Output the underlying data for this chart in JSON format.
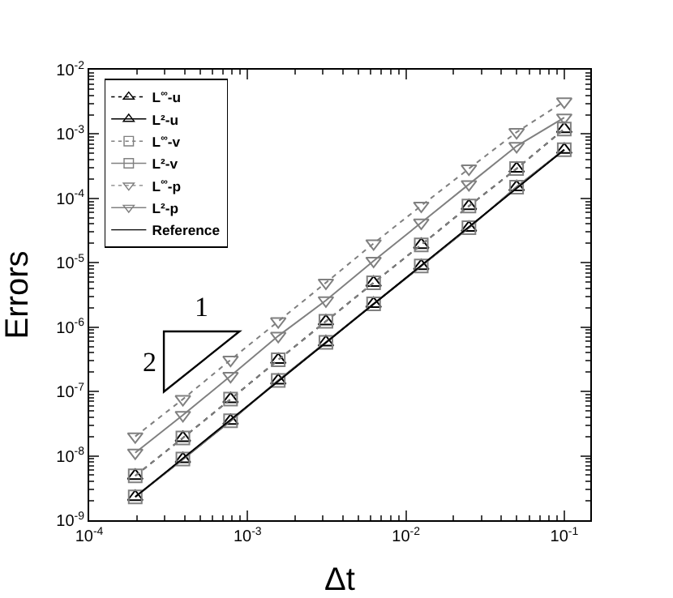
{
  "chart_data": {
    "type": "line",
    "xlabel": "Δt",
    "ylabel": "Errors",
    "x": [
      0.0001953,
      0.0003906,
      0.00078125,
      0.0015625,
      0.003125,
      0.00625,
      0.0125,
      0.025,
      0.05,
      0.1
    ],
    "series": [
      {
        "name": "L$^{∞}$-u",
        "color": "#000000",
        "marker": "triangle",
        "line_style": "dotted",
        "values": [
          4.9e-09,
          1.9e-08,
          7.6e-08,
          3.1e-07,
          1.23e-06,
          4.9e-06,
          1.9e-05,
          7.6e-05,
          0.00029,
          0.0012
        ]
      },
      {
        "name": "L²-u",
        "color": "#000000",
        "marker": "triangle",
        "line_style": "solid",
        "values": [
          2.3e-09,
          8.9e-09,
          3.5e-08,
          1.48e-07,
          5.8e-07,
          2.3e-06,
          8.9e-06,
          3.5e-05,
          0.00015,
          0.00057
        ]
      },
      {
        "name": "L$^{∞}$-v",
        "color": "#808080",
        "marker": "square",
        "line_style": "dotted",
        "values": [
          4.9e-09,
          1.9e-08,
          7.6e-08,
          3.1e-07,
          1.23e-06,
          4.9e-06,
          1.9e-05,
          7.6e-05,
          0.00029,
          0.0012
        ]
      },
      {
        "name": "L²-v",
        "color": "#808080",
        "marker": "square",
        "line_style": "solid",
        "values": [
          2.3e-09,
          8.9e-09,
          3.5e-08,
          1.48e-07,
          5.8e-07,
          2.3e-06,
          8.9e-06,
          3.5e-05,
          0.00015,
          0.00057
        ]
      },
      {
        "name": "L$^{∞}$-p",
        "color": "#808080",
        "marker": "triangle-down",
        "line_style": "dotted",
        "values": [
          2e-08,
          7.6e-08,
          3.1e-07,
          1.23e-06,
          4.9e-06,
          2e-05,
          7.7e-05,
          0.00029,
          0.00107,
          0.0032
        ]
      },
      {
        "name": "L²-p",
        "color": "#808080",
        "marker": "triangle-down",
        "line_style": "solid",
        "values": [
          1.12e-08,
          4.3e-08,
          1.74e-07,
          7.3e-07,
          2.6e-06,
          1.07e-05,
          4.2e-05,
          0.000166,
          0.00065,
          0.0018
        ]
      },
      {
        "name": "Reference",
        "color": "#000000",
        "marker": "none",
        "line_style": "solid",
        "x": [
          0.0001953,
          0.1
        ],
        "values": [
          2.3e-09,
          0.00057
        ]
      }
    ],
    "log": "xy",
    "grid": false,
    "legend": "top left",
    "xlim": [
      0.0001,
      0.146
    ],
    "ylim": [
      1e-09,
      0.01
    ],
    "xticks": [
      {
        "value": 0.0001,
        "label": "10$^{-4}$"
      },
      {
        "value": 0.001,
        "label": "10$^{-3}$"
      },
      {
        "value": 0.01,
        "label": "10$^{-2}$"
      },
      {
        "value": 0.1,
        "label": "10$^{-1}$"
      }
    ],
    "yticks": [
      {
        "value": 1e-09,
        "label": "10$^{-9}$"
      },
      {
        "value": 1e-08,
        "label": "10$^{-8}$"
      },
      {
        "value": 1e-07,
        "label": "10$^{-7}$"
      },
      {
        "value": 1e-06,
        "label": "10$^{-6}$"
      },
      {
        "value": 1e-05,
        "label": "10$^{-5}$"
      },
      {
        "value": 0.0001,
        "label": "10$^{-4}$"
      },
      {
        "value": 0.001,
        "label": "10$^{-3}$"
      },
      {
        "value": 0.01,
        "label": "10$^{-2}$"
      }
    ],
    "annotations": [
      "1",
      "2"
    ]
  }
}
